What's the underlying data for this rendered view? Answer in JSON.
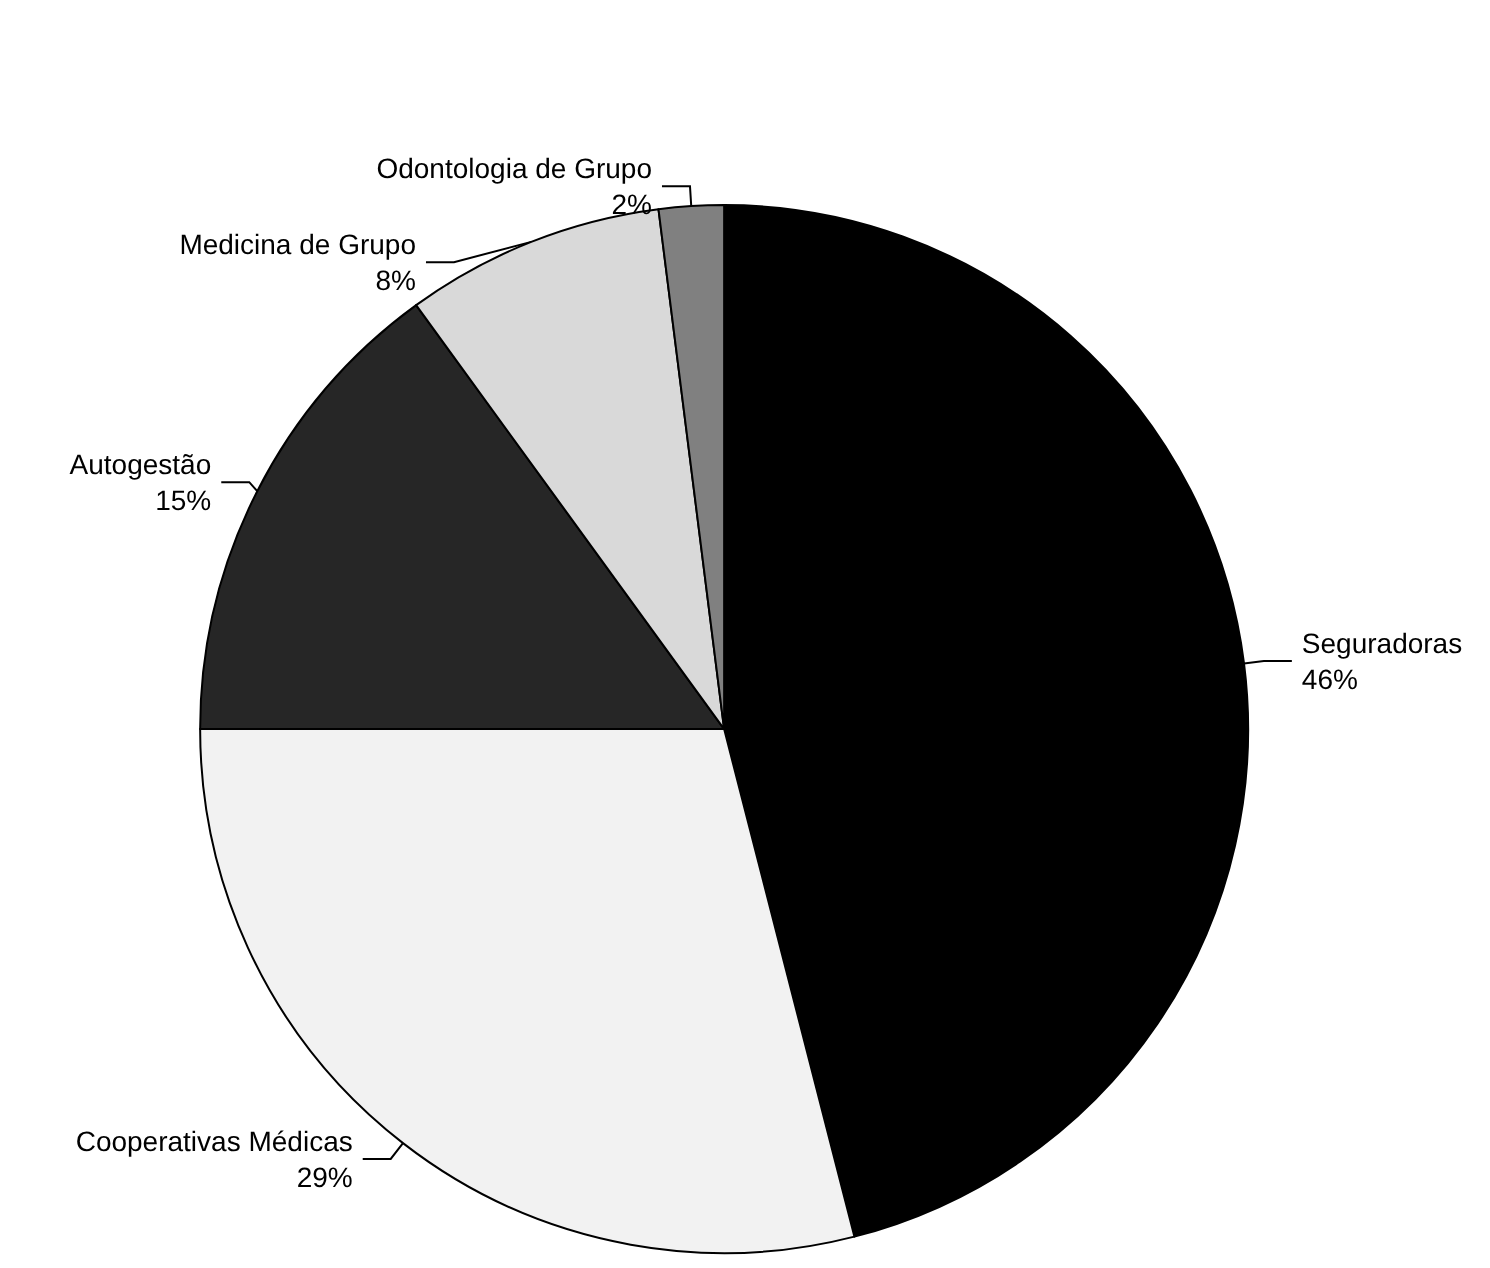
{
  "chart_data": {
    "type": "pie",
    "categories": [
      "Seguradoras",
      "Cooperativas Médicas",
      "Autogestão",
      "Medicina de Grupo",
      "Odontologia de Grupo"
    ],
    "values": [
      46,
      29,
      15,
      8,
      2
    ],
    "colors": [
      "#000000",
      "#f2f2f2",
      "#262626",
      "#d9d9d9",
      "#808080"
    ],
    "value_labels": [
      "46%",
      "29%",
      "15%",
      "8%",
      "2%"
    ],
    "legend": false
  }
}
